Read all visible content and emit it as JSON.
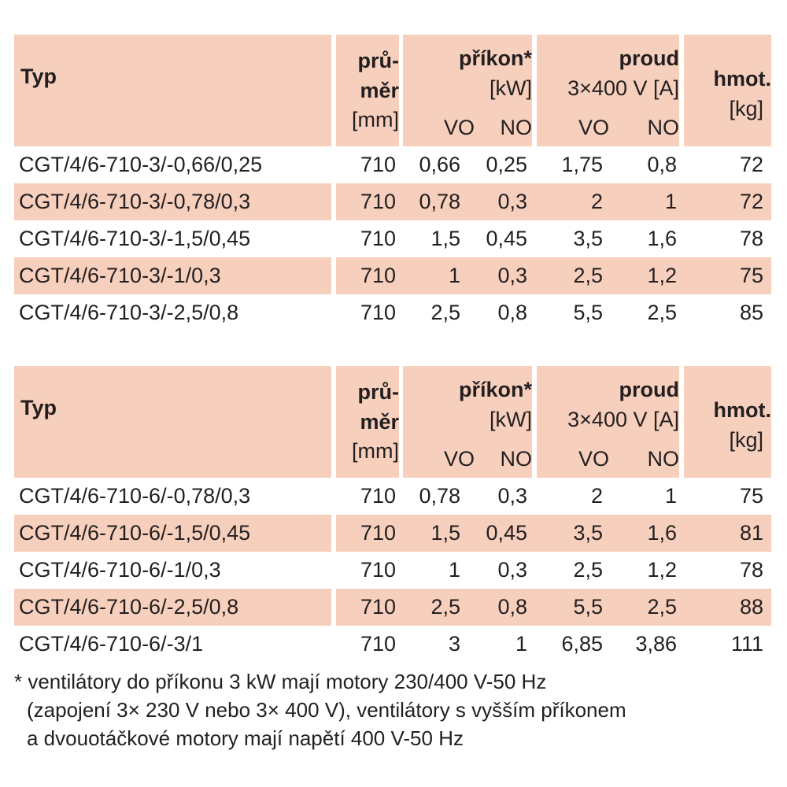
{
  "header": {
    "typ": "Typ",
    "prumer_1": "prů-",
    "prumer_2": "měr",
    "prumer_unit": "[mm]",
    "prikon": "příkon*",
    "prikon_unit": "[kW]",
    "proud": "proud",
    "proud_unit": "3×400 V [A]",
    "hmot": "hmot.",
    "hmot_unit": "[kg]",
    "vo": "VO",
    "no": "NO"
  },
  "tables": [
    {
      "rows": [
        {
          "typ": "CGT/4/6-710-3/-0,66/0,25",
          "prumer": "710",
          "prikon_vo": "0,66",
          "prikon_no": "0,25",
          "proud_vo": "1,75",
          "proud_no": "0,8",
          "hmot": "72"
        },
        {
          "typ": "CGT/4/6-710-3/-0,78/0,3",
          "prumer": "710",
          "prikon_vo": "0,78",
          "prikon_no": "0,3",
          "proud_vo": "2",
          "proud_no": "1",
          "hmot": "72"
        },
        {
          "typ": "CGT/4/6-710-3/-1,5/0,45",
          "prumer": "710",
          "prikon_vo": "1,5",
          "prikon_no": "0,45",
          "proud_vo": "3,5",
          "proud_no": "1,6",
          "hmot": "78"
        },
        {
          "typ": "CGT/4/6-710-3/-1/0,3",
          "prumer": "710",
          "prikon_vo": "1",
          "prikon_no": "0,3",
          "proud_vo": "2,5",
          "proud_no": "1,2",
          "hmot": "75"
        },
        {
          "typ": "CGT/4/6-710-3/-2,5/0,8",
          "prumer": "710",
          "prikon_vo": "2,5",
          "prikon_no": "0,8",
          "proud_vo": "5,5",
          "proud_no": "2,5",
          "hmot": "85"
        }
      ]
    },
    {
      "rows": [
        {
          "typ": "CGT/4/6-710-6/-0,78/0,3",
          "prumer": "710",
          "prikon_vo": "0,78",
          "prikon_no": "0,3",
          "proud_vo": "2",
          "proud_no": "1",
          "hmot": "75"
        },
        {
          "typ": "CGT/4/6-710-6/-1,5/0,45",
          "prumer": "710",
          "prikon_vo": "1,5",
          "prikon_no": "0,45",
          "proud_vo": "3,5",
          "proud_no": "1,6",
          "hmot": "81"
        },
        {
          "typ": "CGT/4/6-710-6/-1/0,3",
          "prumer": "710",
          "prikon_vo": "1",
          "prikon_no": "0,3",
          "proud_vo": "2,5",
          "proud_no": "1,2",
          "hmot": "78"
        },
        {
          "typ": "CGT/4/6-710-6/-2,5/0,8",
          "prumer": "710",
          "prikon_vo": "2,5",
          "prikon_no": "0,8",
          "proud_vo": "5,5",
          "proud_no": "2,5",
          "hmot": "88"
        },
        {
          "typ": "CGT/4/6-710-6/-3/1",
          "prumer": "710",
          "prikon_vo": "3",
          "prikon_no": "1",
          "proud_vo": "6,85",
          "proud_no": "3,86",
          "hmot": "111"
        }
      ]
    }
  ],
  "footnote": {
    "line1": "* ventilátory do příkonu 3 kW mají motory 230/400 V-50 Hz",
    "line2": "(zapojení 3× 230 V nebo 3× 400 V), ventilátory s vyšším příkonem",
    "line3": "a dvouotáčkové motory mají napětí 400 V-50 Hz"
  },
  "colors": {
    "header_bg": "#f7cfbd",
    "row_shade": "#f7cfbd",
    "text": "#231f20"
  }
}
